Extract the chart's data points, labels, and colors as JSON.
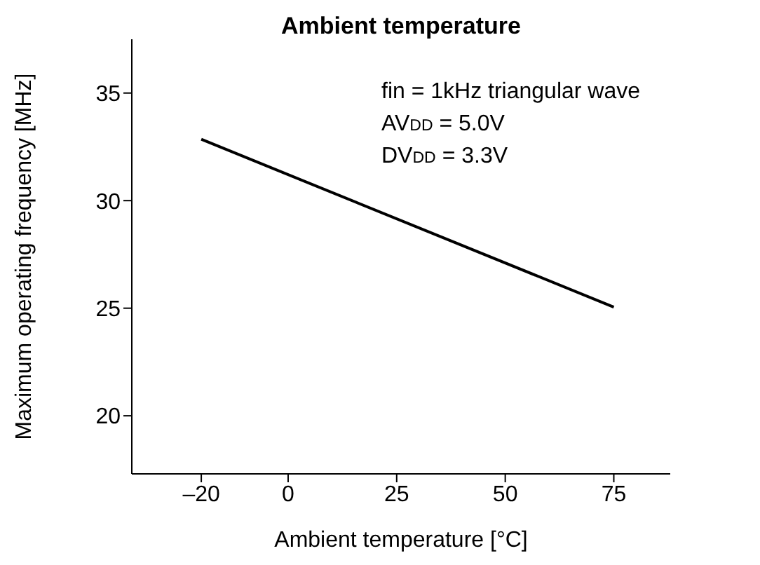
{
  "chart_data": {
    "type": "line",
    "title": "Ambient temperature",
    "xlabel": "Ambient temperature [°C]",
    "ylabel": "Maximum operating frequency [MHz]",
    "annotations": [
      "fin = 1kHz triangular wave",
      "AV$_{DD}$ = 5.0V",
      "DV$_{DD}$ = 3.3V"
    ],
    "x": [
      -20,
      75
    ],
    "series": [
      {
        "color": "#000000",
        "values": [
          32.85,
          25.05
        ]
      }
    ],
    "xlim": [
      -36,
      88
    ],
    "xticks": [
      {
        "value": -20,
        "label": "–20"
      },
      0,
      25,
      50,
      75
    ],
    "ylim": [
      17.3,
      37.5
    ],
    "yticks": [
      20,
      25,
      30,
      35
    ],
    "grid": false,
    "legend": false,
    "marker": "none",
    "line_style": "solid"
  }
}
